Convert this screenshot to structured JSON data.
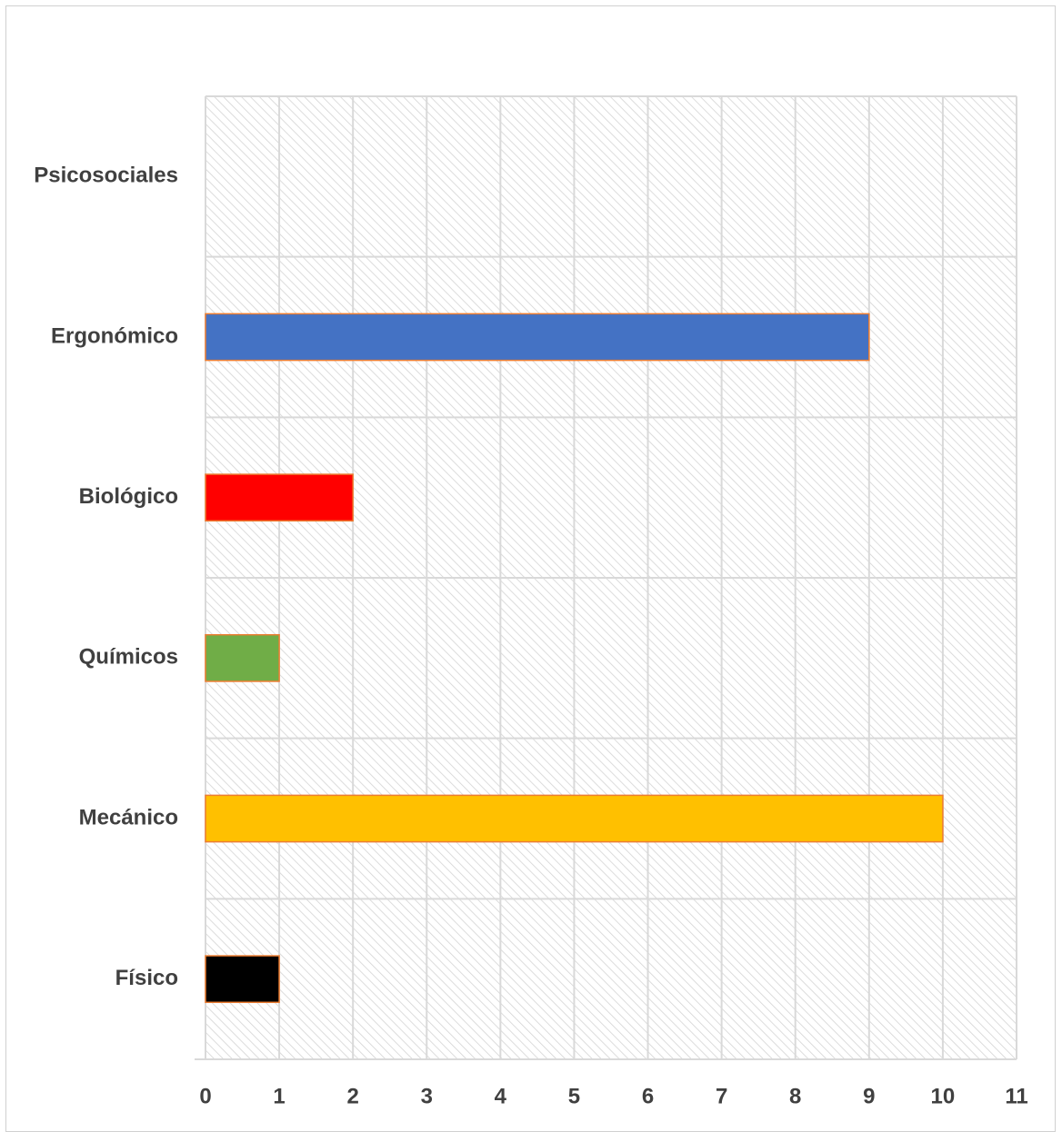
{
  "chart_data": {
    "type": "bar",
    "orientation": "horizontal",
    "title": "",
    "xlabel": "",
    "ylabel": "",
    "categories": [
      "Físico",
      "Mecánico",
      "Químicos",
      "Biológico",
      "Ergonómico",
      "Psicosociales"
    ],
    "values": [
      1,
      10,
      1,
      2,
      9,
      0
    ],
    "bar_colors": [
      "#000000",
      "#FFC000",
      "#70AD47",
      "#FF0000",
      "#4472C4",
      "#A5A5A5"
    ],
    "bar_outline_color": "#ED7D31",
    "xlim": [
      0,
      11
    ],
    "x_ticks": [
      "0",
      "1",
      "2",
      "3",
      "4",
      "5",
      "6",
      "7",
      "8",
      "9",
      "10",
      "11"
    ],
    "grid": true,
    "plot_background": "diagonal-hatch",
    "legend": "none"
  }
}
